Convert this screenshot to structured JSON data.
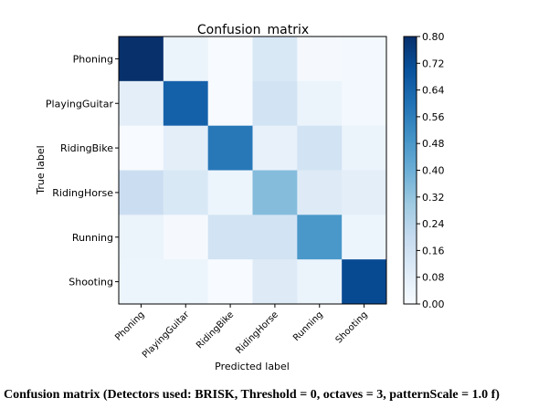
{
  "chart_data": {
    "type": "heatmap",
    "title": "Confusion_matrix",
    "xlabel": "Predicted label",
    "ylabel": "True label",
    "labels": [
      "Phoning",
      "PlayingGuitar",
      "RidingBike",
      "RidingHorse",
      "Running",
      "Shooting"
    ],
    "matrix": [
      [
        0.8,
        0.05,
        0.0,
        0.12,
        0.01,
        0.02
      ],
      [
        0.08,
        0.65,
        0.0,
        0.15,
        0.05,
        0.02
      ],
      [
        0.0,
        0.08,
        0.58,
        0.06,
        0.15,
        0.05
      ],
      [
        0.18,
        0.12,
        0.04,
        0.35,
        0.1,
        0.08
      ],
      [
        0.05,
        0.01,
        0.15,
        0.15,
        0.48,
        0.04
      ],
      [
        0.04,
        0.04,
        0.0,
        0.1,
        0.05,
        0.72
      ]
    ],
    "colorbar": {
      "min": 0.0,
      "max": 0.8,
      "ticks": [
        "0.00",
        "0.08",
        "0.16",
        "0.24",
        "0.32",
        "0.40",
        "0.48",
        "0.56",
        "0.64",
        "0.72",
        "0.80"
      ]
    },
    "colormap": [
      "#f7fbff",
      "#deebf7",
      "#c6dbef",
      "#9ecae1",
      "#6baed6",
      "#4292c6",
      "#2171b5",
      "#08519c",
      "#08306b"
    ]
  },
  "caption": "Confusion matrix (Detectors used: BRISK, Threshold = 0, octaves = 3, patternScale = 1.0 f)"
}
